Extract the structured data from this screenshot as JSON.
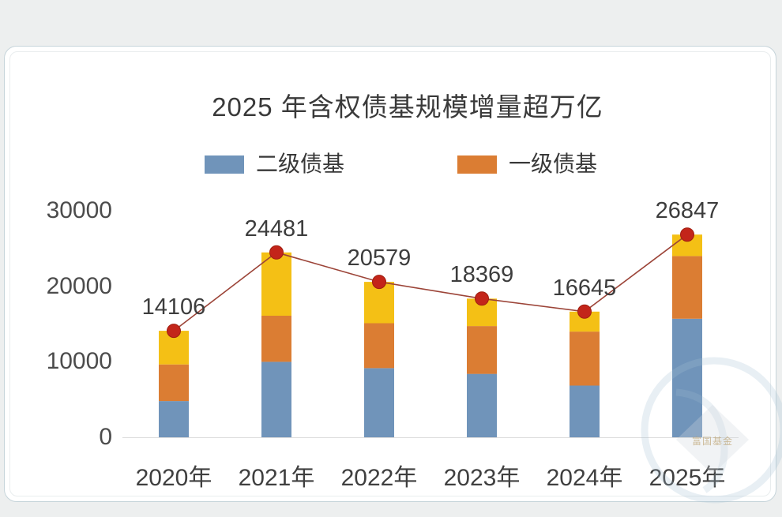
{
  "page": {
    "background": "#EDEFEF",
    "card_background": "#FFFFFF",
    "card_border": "#C6D4DA"
  },
  "chart_data": {
    "type": "bar",
    "subtype": "stacked-bar-with-line",
    "title": "2025 年含权债基规模增量超万亿",
    "categories": [
      "2020年",
      "2021年",
      "2022年",
      "2023年",
      "2024年",
      "2025年"
    ],
    "series": [
      {
        "name": "二级债基",
        "color": "#7094BA",
        "in_legend": true,
        "values": [
          4800,
          10000,
          9150,
          8400,
          6850,
          15700
        ]
      },
      {
        "name": "一级债基",
        "color": "#DB7D33",
        "in_legend": true,
        "values": [
          4850,
          6100,
          5950,
          6330,
          7150,
          8300
        ]
      },
      {
        "name": "",
        "color": "#F4C015",
        "in_legend": false,
        "values": [
          4456,
          8381,
          5479,
          3639,
          2645,
          2847
        ]
      }
    ],
    "line": {
      "color": "#9C4438",
      "dot_color": "#C3251A",
      "dot_edge": "#A01E10",
      "values": [
        14106,
        24481,
        20579,
        18369,
        16645,
        26847
      ]
    },
    "data_labels": [
      "14106",
      "24481",
      "20579",
      "18369",
      "16645",
      "26847"
    ],
    "yticks": [
      0,
      10000,
      20000,
      30000
    ],
    "ylim": [
      0,
      30000
    ],
    "grid": false,
    "legend_position": "top",
    "axis_text_color": "#4C4C4C",
    "label_text_color": "#3D3D3D"
  },
  "watermark": {
    "text": "富国基金"
  }
}
